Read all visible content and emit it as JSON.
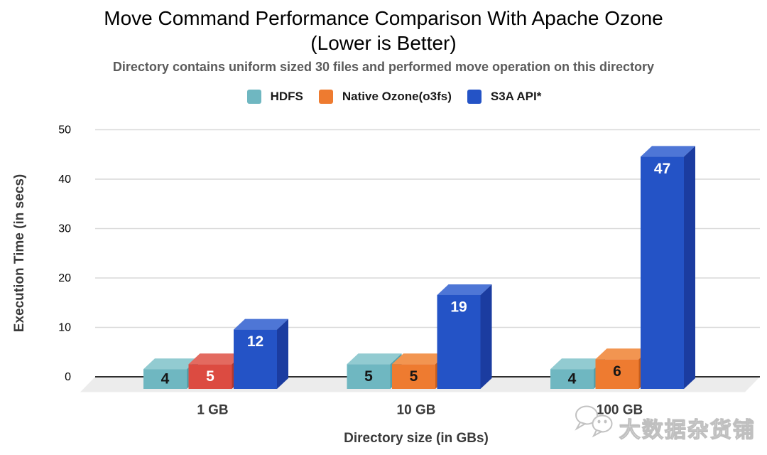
{
  "header": {
    "title_line1": "Move Command Performance Comparison With Apache Ozone",
    "title_line2": "(Lower is Better)",
    "subtitle": "Directory contains uniform sized 30 files and performed move operation on this directory"
  },
  "chart_data": {
    "type": "bar",
    "style": "3d-grouped",
    "title": "Move Command Performance Comparison With Apache Ozone (Lower is Better)",
    "subtitle": "Directory contains uniform sized 30 files and performed move operation on this directory",
    "categories": [
      "1 GB",
      "10 GB",
      "100 GB"
    ],
    "series": [
      {
        "name": "HDFS",
        "values": [
          4,
          5,
          4
        ],
        "color": "#6FB7C1",
        "color_top": "#92CBD1",
        "color_side": "#53A0AB",
        "label_color": "#161616"
      },
      {
        "name": "Native Ozone(o3fs)",
        "values": [
          5,
          5,
          6
        ],
        "color": "#EE7B30",
        "color_top": "#F29551",
        "color_side": "#C85E1C",
        "label_color": "#161616"
      },
      {
        "name": "S3A API*",
        "values": [
          12,
          19,
          47
        ],
        "color": "#2453C6",
        "color_top": "#4E76D6",
        "color_side": "#1B3CA0",
        "label_color": "#ffffff"
      }
    ],
    "bar_overrides": [
      {
        "group": 0,
        "series": 1,
        "color": "#DC4B41",
        "color_top": "#E36A60",
        "color_side": "#B3392F",
        "label_color": "#ffffff"
      }
    ],
    "xlabel": "Directory size (in GBs)",
    "ylabel": "Execution Time (in secs)",
    "ylim": [
      0,
      50
    ],
    "yticks": [
      0,
      10,
      20,
      30,
      40,
      50
    ],
    "grid": true,
    "legend_position": "top",
    "zero_line_color": "#2f2f2f",
    "grid_color": "#d9d9d9",
    "floor_color": "#ececec"
  },
  "watermark": {
    "text": "大数据杂货铺",
    "icon": "wechat-chat-bubbles-icon"
  }
}
